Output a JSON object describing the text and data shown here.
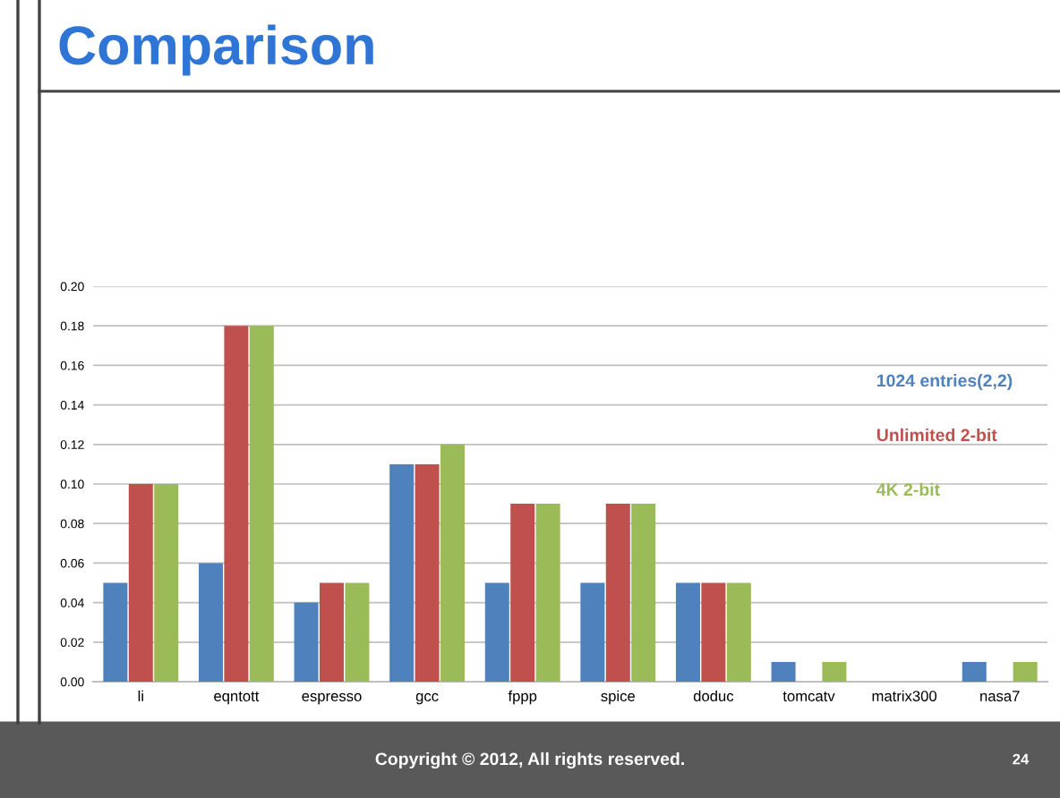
{
  "chart_data": {
    "type": "bar",
    "title": "Comparison",
    "categories": [
      "li",
      "eqntott",
      "espresso",
      "gcc",
      "fppp",
      "spice",
      "doduc",
      "tomcatv",
      "matrix300",
      "nasa7"
    ],
    "series": [
      {
        "name": "1024 entries(2,2)",
        "color": "#4f81bd",
        "values": [
          0.05,
          0.06,
          0.04,
          0.11,
          0.05,
          0.05,
          0.05,
          0.01,
          0,
          0.01
        ]
      },
      {
        "name": "Unlimited 2-bit",
        "color": "#c0504d",
        "values": [
          0.1,
          0.18,
          0.05,
          0.11,
          0.09,
          0.09,
          0.05,
          0,
          0,
          0
        ]
      },
      {
        "name": "4K 2-bit",
        "color": "#9bbb59",
        "values": [
          0.1,
          0.18,
          0.05,
          0.12,
          0.09,
          0.09,
          0.05,
          0.01,
          0,
          0.01
        ]
      }
    ],
    "ylim": [
      0,
      0.2
    ],
    "yticks": [
      {
        "value": 0,
        "label": "0.00"
      },
      {
        "value": 0.02,
        "label": "0.02"
      },
      {
        "value": 0.04,
        "label": "0.04"
      },
      {
        "value": 0.06,
        "label": "0.06"
      },
      {
        "value": 0.08,
        "label": "0.08"
      },
      {
        "value": 0.1,
        "label": "0.10"
      },
      {
        "value": 0.12,
        "label": "0.12"
      },
      {
        "value": 0.14,
        "label": "0.14"
      },
      {
        "value": 0.16,
        "label": "0.16"
      },
      {
        "value": 0.18,
        "label": "0.18"
      },
      {
        "value": 0.2,
        "label": "0.20"
      }
    ],
    "grid": "y",
    "legend": "right",
    "annotations": [
      "Copyright © 2012, All rights reserved.",
      "24"
    ]
  }
}
